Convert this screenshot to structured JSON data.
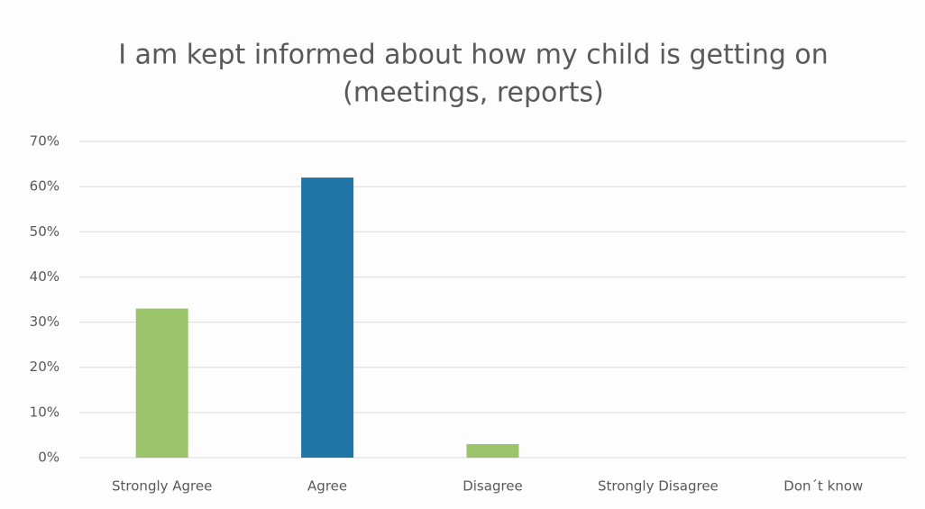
{
  "chart_data": {
    "type": "bar",
    "title": [
      "I am kept informed about how my child is getting on",
      "(meetings, reports)"
    ],
    "categories": [
      "Strongly Agree",
      "Agree",
      "Disagree",
      "Strongly Disagree",
      "Don´t know"
    ],
    "values": [
      33,
      62,
      3,
      0,
      0
    ],
    "colors": [
      "#9bc46a",
      "#1f76a6",
      "#9bc46a",
      "#9bc46a",
      "#9bc46a"
    ],
    "ylim": [
      0,
      70
    ],
    "yticks": [
      {
        "value": 0,
        "label": "0%"
      },
      {
        "value": 10,
        "label": "10%"
      },
      {
        "value": 20,
        "label": "20%"
      },
      {
        "value": 30,
        "label": "30%"
      },
      {
        "value": 40,
        "label": "40%"
      },
      {
        "value": 50,
        "label": "50%"
      },
      {
        "value": 60,
        "label": "60%"
      },
      {
        "value": 70,
        "label": "70%"
      }
    ],
    "grid": true
  }
}
